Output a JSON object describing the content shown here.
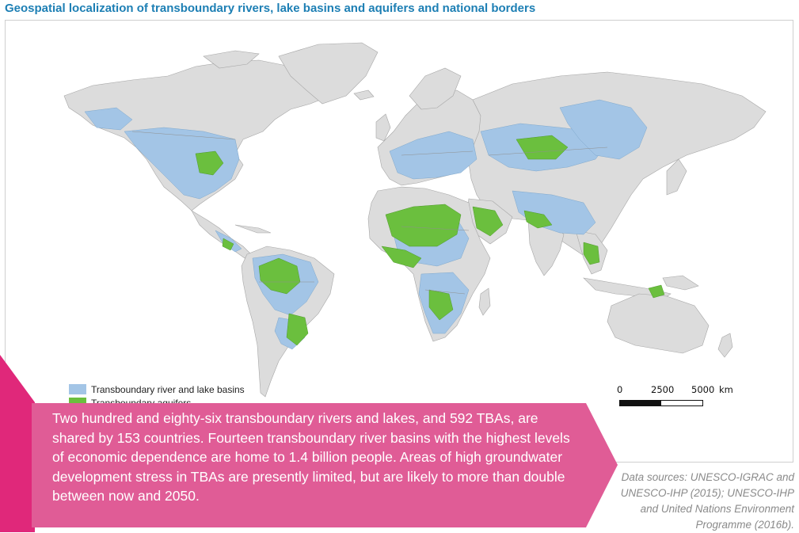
{
  "title": "Geospatial localization of transboundary rivers, lake basins and aquifers and national borders",
  "colors": {
    "land": "#dcdcdc",
    "borders": "#a6a6a6",
    "river_basins": "#a3c5e6",
    "aquifers": "#6bbf3e",
    "accent_pink": "#e05c96",
    "title_blue": "#1d7fb4"
  },
  "legend": {
    "items": [
      {
        "label": "Transboundary river and lake basins",
        "color": "#a3c5e6"
      },
      {
        "label": "Transboundary aquifers",
        "color": "#6bbf3e"
      }
    ]
  },
  "scale_bar": {
    "labels": [
      "0",
      "2500",
      "5000",
      "km"
    ]
  },
  "callout": {
    "text": "Two hundred and eighty-six transboundary rivers and lakes, and 592 TBAs, are shared by 153 countries. Fourteen transboundary river basins with the highest levels of economic dependence are home to 1.4 billion people. Areas of high groundwater development stress in TBAs are presently limited, but are likely to more than double between now and 2050."
  },
  "sources": {
    "text": "Data sources: UNESCO-IGRAC and UNESCO-IHP (2015); UNESCO-IHP and United Nations Environment Programme (2016b)."
  }
}
